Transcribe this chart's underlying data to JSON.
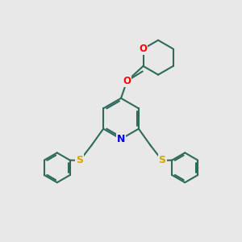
{
  "background_color": "#e8e8e8",
  "bond_color": "#2d6b5a",
  "atom_colors": {
    "N": "#0000ee",
    "O": "#ff0000",
    "S": "#ccaa00",
    "C": "#2d6b5a"
  },
  "bond_width": 1.5,
  "figsize": [
    3.0,
    3.0
  ],
  "dpi": 100
}
